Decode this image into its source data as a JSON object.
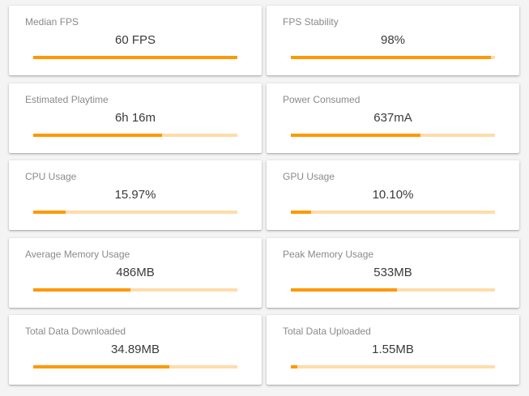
{
  "colors": {
    "page_background": "#f4f4f4",
    "card_background": "#ffffff",
    "bar_fill": "#ff9800",
    "bar_track": "#ffdcaa",
    "title_text": "#8a8a8a",
    "value_text": "#3a3a3a"
  },
  "metrics": [
    {
      "id": "median-fps",
      "title": "Median FPS",
      "value": "60 FPS",
      "percent": 100
    },
    {
      "id": "fps-stability",
      "title": "FPS Stability",
      "value": "98%",
      "percent": 98
    },
    {
      "id": "estimated-playtime",
      "title": "Estimated Playtime",
      "value": "6h 16m",
      "percent": 63
    },
    {
      "id": "power-consumed",
      "title": "Power Consumed",
      "value": "637mA",
      "percent": 63.5
    },
    {
      "id": "cpu-usage",
      "title": "CPU Usage",
      "value": "15.97%",
      "percent": 16
    },
    {
      "id": "gpu-usage",
      "title": "GPU Usage",
      "value": "10.10%",
      "percent": 10
    },
    {
      "id": "average-memory-usage",
      "title": "Average Memory Usage",
      "value": "486MB",
      "percent": 47.6
    },
    {
      "id": "peak-memory-usage",
      "title": "Peak Memory Usage",
      "value": "533MB",
      "percent": 52
    },
    {
      "id": "total-data-downloaded",
      "title": "Total Data Downloaded",
      "value": "34.89MB",
      "percent": 66.7
    },
    {
      "id": "total-data-uploaded",
      "title": "Total Data Uploaded",
      "value": "1.55MB",
      "percent": 3
    }
  ]
}
